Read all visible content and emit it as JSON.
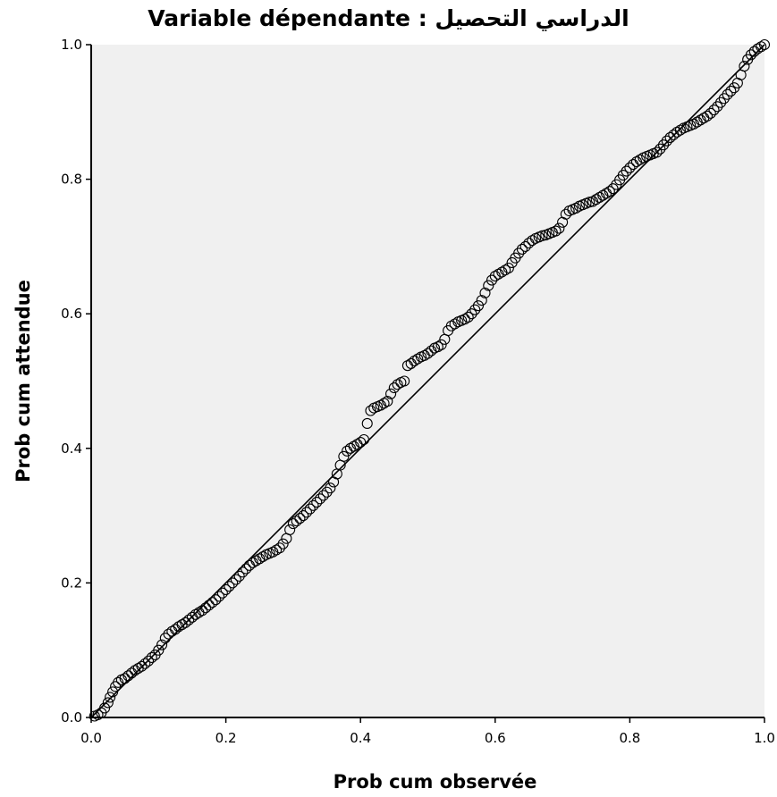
{
  "chart_data": {
    "type": "scatter",
    "title": "Variable dépendante : الدراسي التحصيل",
    "xlabel": "Prob cum observée",
    "ylabel": "Prob cum attendue",
    "xlim": [
      0.0,
      1.0
    ],
    "ylim": [
      0.0,
      1.0
    ],
    "xticks": [
      "0.0",
      "0.2",
      "0.4",
      "0.6",
      "0.8",
      "1.0"
    ],
    "yticks": [
      "0.0",
      "0.2",
      "0.4",
      "0.6",
      "0.8",
      "1.0"
    ],
    "grid": false,
    "reference_line": [
      [
        0.0,
        0.0
      ],
      [
        1.0,
        1.0
      ]
    ],
    "colors": {
      "plot_background": "#f0f0f0",
      "marker": "#000000",
      "line": "#000000"
    },
    "series": [
      {
        "marker": "open-circle",
        "points": [
          [
            0.005,
            0.002
          ],
          [
            0.01,
            0.004
          ],
          [
            0.015,
            0.007
          ],
          [
            0.02,
            0.014
          ],
          [
            0.025,
            0.022
          ],
          [
            0.028,
            0.03
          ],
          [
            0.032,
            0.038
          ],
          [
            0.036,
            0.046
          ],
          [
            0.04,
            0.052
          ],
          [
            0.045,
            0.056
          ],
          [
            0.05,
            0.058
          ],
          [
            0.055,
            0.062
          ],
          [
            0.06,
            0.066
          ],
          [
            0.065,
            0.07
          ],
          [
            0.07,
            0.073
          ],
          [
            0.075,
            0.076
          ],
          [
            0.08,
            0.08
          ],
          [
            0.085,
            0.084
          ],
          [
            0.09,
            0.089
          ],
          [
            0.095,
            0.093
          ],
          [
            0.1,
            0.1
          ],
          [
            0.105,
            0.108
          ],
          [
            0.11,
            0.118
          ],
          [
            0.115,
            0.124
          ],
          [
            0.12,
            0.128
          ],
          [
            0.125,
            0.131
          ],
          [
            0.13,
            0.135
          ],
          [
            0.135,
            0.138
          ],
          [
            0.14,
            0.141
          ],
          [
            0.145,
            0.145
          ],
          [
            0.15,
            0.149
          ],
          [
            0.155,
            0.153
          ],
          [
            0.16,
            0.156
          ],
          [
            0.165,
            0.159
          ],
          [
            0.17,
            0.163
          ],
          [
            0.175,
            0.167
          ],
          [
            0.18,
            0.171
          ],
          [
            0.185,
            0.175
          ],
          [
            0.19,
            0.18
          ],
          [
            0.195,
            0.185
          ],
          [
            0.2,
            0.19
          ],
          [
            0.205,
            0.195
          ],
          [
            0.21,
            0.2
          ],
          [
            0.215,
            0.205
          ],
          [
            0.22,
            0.21
          ],
          [
            0.225,
            0.216
          ],
          [
            0.23,
            0.221
          ],
          [
            0.235,
            0.226
          ],
          [
            0.24,
            0.23
          ],
          [
            0.245,
            0.233
          ],
          [
            0.25,
            0.236
          ],
          [
            0.255,
            0.239
          ],
          [
            0.26,
            0.242
          ],
          [
            0.265,
            0.244
          ],
          [
            0.27,
            0.246
          ],
          [
            0.275,
            0.249
          ],
          [
            0.28,
            0.252
          ],
          [
            0.285,
            0.258
          ],
          [
            0.29,
            0.266
          ],
          [
            0.295,
            0.279
          ],
          [
            0.3,
            0.288
          ],
          [
            0.305,
            0.292
          ],
          [
            0.31,
            0.296
          ],
          [
            0.315,
            0.3
          ],
          [
            0.32,
            0.305
          ],
          [
            0.325,
            0.31
          ],
          [
            0.33,
            0.315
          ],
          [
            0.335,
            0.32
          ],
          [
            0.34,
            0.325
          ],
          [
            0.345,
            0.33
          ],
          [
            0.35,
            0.335
          ],
          [
            0.355,
            0.341
          ],
          [
            0.36,
            0.35
          ],
          [
            0.365,
            0.362
          ],
          [
            0.37,
            0.375
          ],
          [
            0.375,
            0.388
          ],
          [
            0.38,
            0.396
          ],
          [
            0.385,
            0.4
          ],
          [
            0.39,
            0.403
          ],
          [
            0.395,
            0.406
          ],
          [
            0.4,
            0.409
          ],
          [
            0.405,
            0.413
          ],
          [
            0.41,
            0.437
          ],
          [
            0.415,
            0.456
          ],
          [
            0.42,
            0.46
          ],
          [
            0.425,
            0.462
          ],
          [
            0.43,
            0.464
          ],
          [
            0.435,
            0.467
          ],
          [
            0.44,
            0.47
          ],
          [
            0.445,
            0.481
          ],
          [
            0.45,
            0.49
          ],
          [
            0.455,
            0.495
          ],
          [
            0.46,
            0.498
          ],
          [
            0.465,
            0.5
          ],
          [
            0.47,
            0.523
          ],
          [
            0.475,
            0.526
          ],
          [
            0.48,
            0.53
          ],
          [
            0.485,
            0.533
          ],
          [
            0.49,
            0.536
          ],
          [
            0.495,
            0.538
          ],
          [
            0.5,
            0.541
          ],
          [
            0.505,
            0.545
          ],
          [
            0.51,
            0.549
          ],
          [
            0.515,
            0.551
          ],
          [
            0.52,
            0.554
          ],
          [
            0.525,
            0.562
          ],
          [
            0.53,
            0.575
          ],
          [
            0.535,
            0.582
          ],
          [
            0.54,
            0.585
          ],
          [
            0.545,
            0.588
          ],
          [
            0.55,
            0.59
          ],
          [
            0.555,
            0.592
          ],
          [
            0.56,
            0.595
          ],
          [
            0.565,
            0.6
          ],
          [
            0.57,
            0.606
          ],
          [
            0.575,
            0.612
          ],
          [
            0.58,
            0.62
          ],
          [
            0.585,
            0.631
          ],
          [
            0.59,
            0.642
          ],
          [
            0.595,
            0.65
          ],
          [
            0.6,
            0.656
          ],
          [
            0.605,
            0.659
          ],
          [
            0.61,
            0.662
          ],
          [
            0.615,
            0.665
          ],
          [
            0.62,
            0.668
          ],
          [
            0.625,
            0.676
          ],
          [
            0.63,
            0.683
          ],
          [
            0.635,
            0.69
          ],
          [
            0.64,
            0.696
          ],
          [
            0.645,
            0.7
          ],
          [
            0.65,
            0.705
          ],
          [
            0.655,
            0.709
          ],
          [
            0.66,
            0.712
          ],
          [
            0.665,
            0.714
          ],
          [
            0.67,
            0.716
          ],
          [
            0.675,
            0.717
          ],
          [
            0.68,
            0.719
          ],
          [
            0.685,
            0.721
          ],
          [
            0.69,
            0.723
          ],
          [
            0.695,
            0.727
          ],
          [
            0.7,
            0.736
          ],
          [
            0.705,
            0.748
          ],
          [
            0.71,
            0.753
          ],
          [
            0.715,
            0.755
          ],
          [
            0.72,
            0.757
          ],
          [
            0.725,
            0.76
          ],
          [
            0.73,
            0.762
          ],
          [
            0.735,
            0.764
          ],
          [
            0.74,
            0.766
          ],
          [
            0.745,
            0.767
          ],
          [
            0.75,
            0.77
          ],
          [
            0.755,
            0.773
          ],
          [
            0.76,
            0.776
          ],
          [
            0.765,
            0.779
          ],
          [
            0.77,
            0.782
          ],
          [
            0.775,
            0.786
          ],
          [
            0.78,
            0.792
          ],
          [
            0.785,
            0.799
          ],
          [
            0.79,
            0.806
          ],
          [
            0.795,
            0.812
          ],
          [
            0.8,
            0.817
          ],
          [
            0.805,
            0.822
          ],
          [
            0.81,
            0.826
          ],
          [
            0.815,
            0.829
          ],
          [
            0.82,
            0.832
          ],
          [
            0.825,
            0.834
          ],
          [
            0.83,
            0.836
          ],
          [
            0.835,
            0.838
          ],
          [
            0.84,
            0.84
          ],
          [
            0.845,
            0.845
          ],
          [
            0.85,
            0.851
          ],
          [
            0.855,
            0.857
          ],
          [
            0.86,
            0.862
          ],
          [
            0.865,
            0.866
          ],
          [
            0.87,
            0.87
          ],
          [
            0.875,
            0.873
          ],
          [
            0.88,
            0.876
          ],
          [
            0.885,
            0.878
          ],
          [
            0.89,
            0.88
          ],
          [
            0.895,
            0.882
          ],
          [
            0.9,
            0.885
          ],
          [
            0.905,
            0.888
          ],
          [
            0.91,
            0.891
          ],
          [
            0.915,
            0.894
          ],
          [
            0.92,
            0.898
          ],
          [
            0.925,
            0.903
          ],
          [
            0.93,
            0.908
          ],
          [
            0.935,
            0.914
          ],
          [
            0.94,
            0.92
          ],
          [
            0.945,
            0.926
          ],
          [
            0.95,
            0.931
          ],
          [
            0.955,
            0.936
          ],
          [
            0.96,
            0.943
          ],
          [
            0.965,
            0.955
          ],
          [
            0.97,
            0.968
          ],
          [
            0.975,
            0.978
          ],
          [
            0.98,
            0.985
          ],
          [
            0.985,
            0.99
          ],
          [
            0.99,
            0.994
          ],
          [
            0.995,
            0.997
          ],
          [
            1.0,
            1.0
          ]
        ]
      }
    ]
  }
}
